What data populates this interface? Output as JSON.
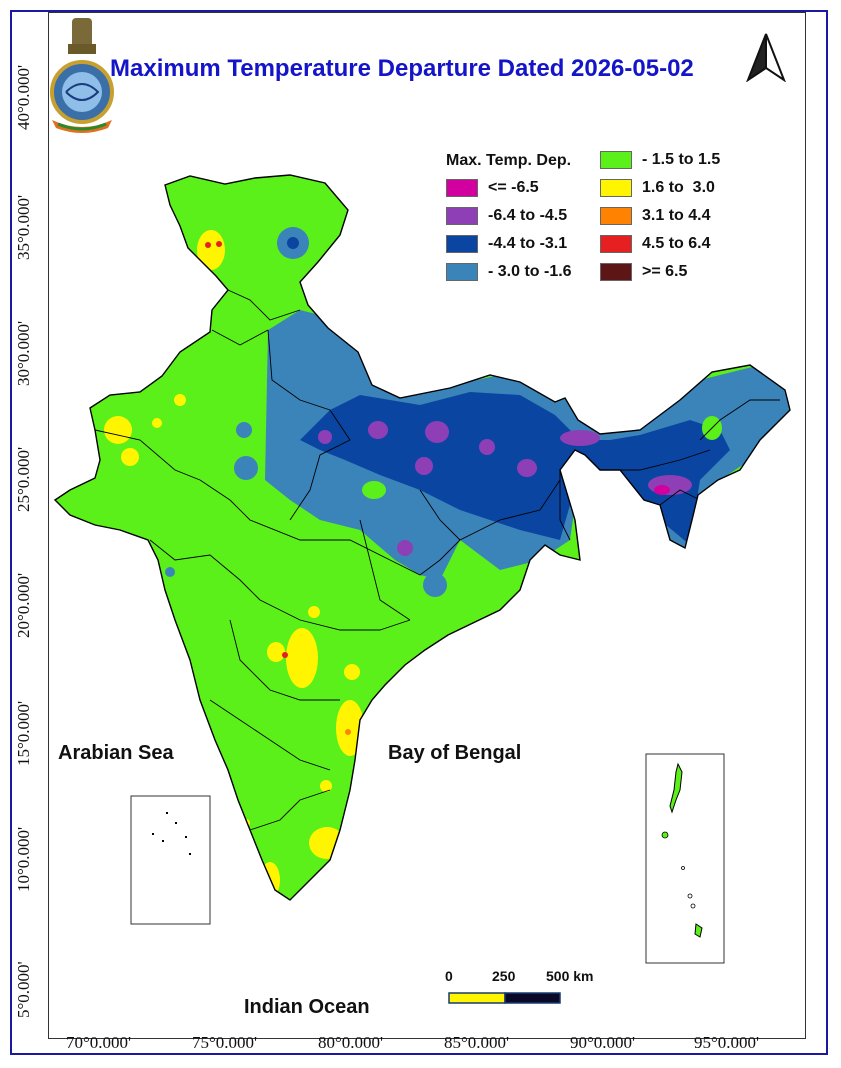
{
  "title": "Maximum Temperature Departure Dated 2026-05-02",
  "legend": {
    "title": "Max. Temp. Dep.",
    "items": [
      {
        "label": "<= -6.5",
        "color": "#d1009f"
      },
      {
        "label": "-6.4 to -4.5",
        "color": "#8e3fb5"
      },
      {
        "label": "-4.4 to -3.1",
        "color": "#0b45a2"
      },
      {
        "label": "- 3.0 to -1.6",
        "color": "#3b84ba"
      },
      {
        "label": "- 1.5 to 1.5",
        "color": "#5cf01a"
      },
      {
        "label": "1.6 to  3.0",
        "color": "#fff500"
      },
      {
        "label": "3.1 to 4.4",
        "color": "#ff8300"
      },
      {
        "label": "4.5 to 6.4",
        "color": "#e62020"
      },
      {
        "label": ">= 6.5",
        "color": "#5e1515"
      }
    ]
  },
  "seas": {
    "arabian": "Arabian Sea",
    "bengal": "Bay of Bengal",
    "indian": "Indian Ocean"
  },
  "scale": {
    "l0": "0",
    "l1": "250",
    "l2": "500 km"
  },
  "lon_labels": [
    "70°0.000'",
    "75°0.000'",
    "80°0.000'",
    "85°0.000'",
    "90°0.000'",
    "95°0.000'"
  ],
  "lat_labels": [
    "40°0.000'",
    "35°0.000'",
    "30°0.000'",
    "25°0.000'",
    "20°0.000'",
    "15°0.000'",
    "10°0.000'",
    "5°0.000'"
  ]
}
